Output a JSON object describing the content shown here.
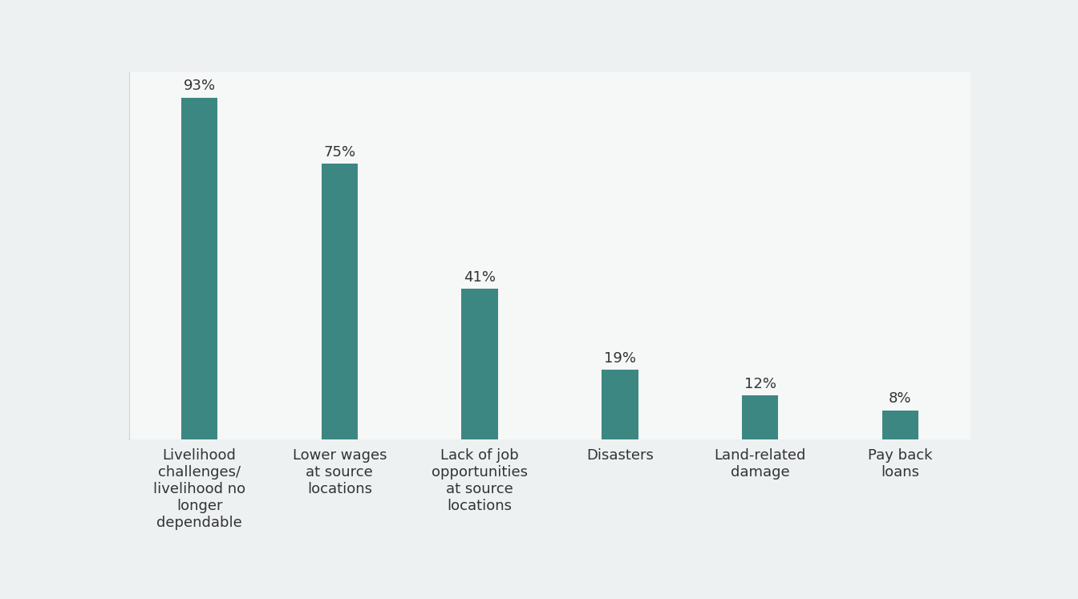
{
  "chart_data": {
    "type": "bar",
    "categories": [
      "Livelihood\nchallenges/\nlivelihood no\nlonger\ndependable",
      "Lower wages\nat source\nlocations",
      "Lack of job\nopportunities\nat source\nlocations",
      "Disasters",
      "Land-related\ndamage",
      "Pay back\nloans"
    ],
    "values": [
      93,
      75,
      41,
      19,
      12,
      8
    ],
    "value_labels": [
      "93%",
      "75%",
      "41%",
      "19%",
      "12%",
      "8%"
    ],
    "data_labels": true,
    "color": "#3d8782",
    "ylim": [
      0,
      100
    ],
    "yticks": [],
    "tick_labels": "x",
    "grid": false
  }
}
